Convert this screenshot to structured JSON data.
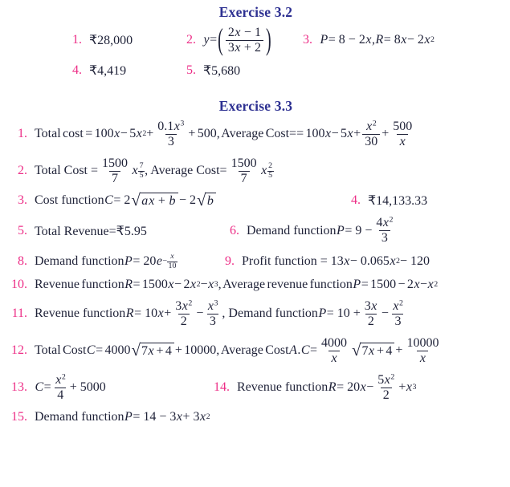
{
  "colors": {
    "title": "#2e3192",
    "number": "#ed2e87",
    "body": "#1f2238",
    "background": "#ffffff"
  },
  "ex32": {
    "title": "Exercise 3.2",
    "items": [
      {
        "num": "1.",
        "math": [
          "₹28,000"
        ]
      },
      {
        "num": "2.",
        "math": [
          {
            "v": "y"
          },
          " = ",
          {
            "t": "(",
            "c": "bp"
          },
          {
            "f": [
              [
                "2",
                {
                  "v": "x"
                },
                " − 1"
              ],
              [
                "3",
                {
                  "v": "x"
                },
                " + 2"
              ]
            ]
          },
          {
            "t": ")",
            "c": "bp"
          }
        ]
      },
      {
        "num": "3.",
        "math": [
          {
            "v": "P"
          },
          " = 8 − 2",
          {
            "v": "x"
          },
          ",  ",
          {
            "v": "R"
          },
          " = 8",
          {
            "v": "x"
          },
          " − 2",
          {
            "v": "x",
            "p": "2"
          }
        ]
      },
      {
        "num": "4.",
        "math": [
          "₹4,419"
        ]
      },
      {
        "num": "5.",
        "math": [
          "₹5,680"
        ]
      }
    ]
  },
  "ex33": {
    "title": "Exercise 3.3",
    "items": [
      {
        "num": "1.",
        "math": [
          "Total cost  = 100",
          {
            "v": "x"
          },
          " − 5",
          {
            "v": "x",
            "p": "2"
          },
          " + ",
          {
            "f": [
              [
                "0.1",
                {
                  "v": "x",
                  "p": "3"
                }
              ],
              [
                "3"
              ]
            ]
          },
          " + 500, Average  Cost== 100",
          {
            "v": "x"
          },
          " − 5",
          {
            "v": "x"
          },
          " + ",
          {
            "f": [
              [
                {
                  "v": "x",
                  "p": "2"
                }
              ],
              [
                "30"
              ]
            ]
          },
          " + ",
          {
            "f": [
              [
                "500"
              ],
              [
                {
                  "v": "x"
                }
              ]
            ]
          }
        ]
      },
      {
        "num": "2.",
        "math": [
          "Total Cost  = ",
          {
            "f": [
              [
                "1500"
              ],
              [
                "7"
              ]
            ]
          },
          {
            "v": "x",
            "p": [
              {
                "f": [
                  [
                    "7"
                  ],
                  [
                    "5"
                  ]
                ]
              }
            ]
          },
          "  , Average Cost= ",
          {
            "f": [
              [
                "1500"
              ],
              [
                "7"
              ]
            ]
          },
          {
            "v": "x",
            "p": [
              {
                "f": [
                  [
                    "2"
                  ],
                  [
                    "5"
                  ]
                ]
              }
            ]
          }
        ]
      },
      {
        "num": "3.",
        "math": [
          "Cost function ",
          {
            "v": "C"
          },
          " = 2",
          {
            "q": [
              {
                "v": "a"
              },
              {
                "v": "x"
              },
              " + ",
              {
                "v": "b"
              }
            ]
          },
          " − 2",
          {
            "q": [
              {
                "v": "b"
              }
            ]
          }
        ]
      },
      {
        "num": "4.",
        "math": [
          "₹14,133.33"
        ]
      },
      {
        "num": "5.",
        "math": [
          "Total Revenue=₹5.95"
        ]
      },
      {
        "num": "6.",
        "math": [
          "Demand  function  ",
          {
            "v": "P"
          },
          " = 9 − ",
          {
            "f": [
              [
                "4",
                {
                  "v": "x",
                  "p": "2"
                }
              ],
              [
                "3"
              ]
            ]
          }
        ]
      },
      {
        "num": "8.",
        "math": [
          "Demand function  ",
          {
            "v": "P"
          },
          " = 20",
          {
            "v": "e",
            "p": [
              "−",
              {
                "f": [
                  [
                    {
                      "v": "x"
                    }
                  ],
                  [
                    "10"
                  ]
                ]
              }
            ]
          }
        ]
      },
      {
        "num": "9.",
        "math": [
          "Profit  function  = 13",
          {
            "v": "x"
          },
          " − 0.065",
          {
            "v": "x",
            "p": "2"
          },
          " − 120"
        ]
      },
      {
        "num": "10.",
        "math": [
          "Revenue function ",
          {
            "v": "R"
          },
          " = 1500",
          {
            "v": "x"
          },
          " − 2",
          {
            "v": "x",
            "p": "2"
          },
          " − ",
          {
            "v": "x",
            "p": "3"
          },
          ", Average revenue function ",
          {
            "v": "P"
          },
          " = 1500 − 2",
          {
            "v": "x"
          },
          " − ",
          {
            "v": "x",
            "p": "2"
          }
        ]
      },
      {
        "num": "11.",
        "math": [
          "Revenue function  ",
          {
            "v": "R"
          },
          " = 10",
          {
            "v": "x"
          },
          " + ",
          {
            "f": [
              [
                "3",
                {
                  "v": "x",
                  "p": "2"
                }
              ],
              [
                "2"
              ]
            ]
          },
          " − ",
          {
            "f": [
              [
                {
                  "v": "x",
                  "p": "3"
                }
              ],
              [
                "3"
              ]
            ]
          },
          " , Demand function  ",
          {
            "v": "P"
          },
          " = 10 + ",
          {
            "f": [
              [
                "3",
                {
                  "v": "x"
                }
              ],
              [
                "2"
              ]
            ]
          },
          " − ",
          {
            "f": [
              [
                {
                  "v": "x",
                  "p": "2"
                }
              ],
              [
                "3"
              ]
            ]
          }
        ]
      },
      {
        "num": "12.",
        "math": [
          "Total Cost  ",
          {
            "v": "C"
          },
          " = 4000",
          {
            "q": [
              "7",
              {
                "v": "x"
              },
              " + 4"
            ]
          },
          " + 10000, Average Cost  ",
          {
            "v": "A"
          },
          ".",
          {
            "v": "C"
          },
          " = ",
          {
            "f": [
              [
                "4000"
              ],
              [
                {
                  "v": "x"
                }
              ]
            ]
          },
          {
            "q": [
              "7",
              {
                "v": "x"
              },
              " + 4"
            ]
          },
          " + ",
          {
            "f": [
              [
                "10000"
              ],
              [
                {
                  "v": "x"
                }
              ]
            ]
          }
        ]
      },
      {
        "num": "13.",
        "math": [
          {
            "v": "C"
          },
          " = ",
          {
            "f": [
              [
                {
                  "v": "x",
                  "p": "2"
                }
              ],
              [
                "4"
              ]
            ]
          },
          " + 5000"
        ]
      },
      {
        "num": "14.",
        "math": [
          "Revenue function  ",
          {
            "v": "R"
          },
          " = 20",
          {
            "v": "x"
          },
          " − ",
          {
            "f": [
              [
                "5",
                {
                  "v": "x",
                  "p": "2"
                }
              ],
              [
                "2"
              ]
            ]
          },
          " + ",
          {
            "v": "x",
            "p": "3"
          }
        ]
      },
      {
        "num": "15.",
        "math": [
          "Demand function ",
          {
            "v": "P"
          },
          " = 14 − 3",
          {
            "v": "x"
          },
          " + 3",
          {
            "v": "x",
            "p": "2"
          }
        ]
      }
    ]
  }
}
